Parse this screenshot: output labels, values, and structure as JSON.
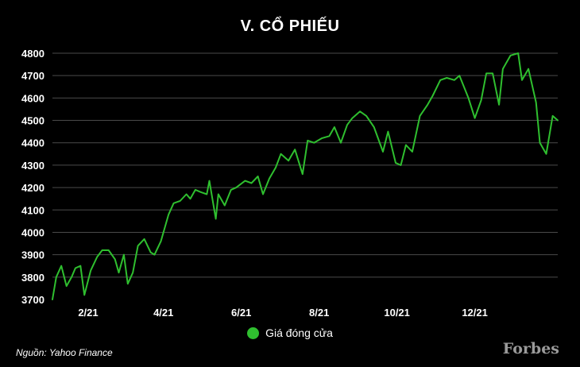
{
  "colors": {
    "background": "#000000",
    "line": "#2fbf2f",
    "grid": "#4a4a4a",
    "text": "#ffffff",
    "logo": "#9a9a9a"
  },
  "legend": {
    "label": "Giá đóng cửa"
  },
  "source": "Nguồn: Yahoo Finance",
  "brand": "Forbes",
  "chart_data": {
    "type": "line",
    "title": "V. CỔ PHIẾU",
    "xlabel": "",
    "ylabel": "",
    "ylim": [
      3700,
      4800
    ],
    "xlim": [
      "2021-01-04",
      "2022-02-04"
    ],
    "yticks": [
      3700,
      3800,
      3900,
      4000,
      4100,
      4200,
      4300,
      4400,
      4500,
      4600,
      4700,
      4800
    ],
    "xticks": [
      {
        "date": "2021-02-01",
        "label": "2/21"
      },
      {
        "date": "2021-04-01",
        "label": "4/21"
      },
      {
        "date": "2021-06-01",
        "label": "6/21"
      },
      {
        "date": "2021-08-01",
        "label": "8/21"
      },
      {
        "date": "2021-10-01",
        "label": "10/21"
      },
      {
        "date": "2021-12-01",
        "label": "12/21"
      }
    ],
    "grid": "horizontal",
    "legend_position": "bottom-center",
    "series": [
      {
        "name": "Giá đóng cửa",
        "points": [
          [
            "2021-01-04",
            3700
          ],
          [
            "2021-01-07",
            3800
          ],
          [
            "2021-01-11",
            3850
          ],
          [
            "2021-01-15",
            3760
          ],
          [
            "2021-01-19",
            3800
          ],
          [
            "2021-01-22",
            3840
          ],
          [
            "2021-01-26",
            3850
          ],
          [
            "2021-01-29",
            3720
          ],
          [
            "2021-02-03",
            3830
          ],
          [
            "2021-02-08",
            3890
          ],
          [
            "2021-02-12",
            3920
          ],
          [
            "2021-02-17",
            3920
          ],
          [
            "2021-02-22",
            3880
          ],
          [
            "2021-02-25",
            3820
          ],
          [
            "2021-03-01",
            3900
          ],
          [
            "2021-03-04",
            3770
          ],
          [
            "2021-03-08",
            3820
          ],
          [
            "2021-03-12",
            3940
          ],
          [
            "2021-03-17",
            3970
          ],
          [
            "2021-03-22",
            3910
          ],
          [
            "2021-03-25",
            3900
          ],
          [
            "2021-03-30",
            3960
          ],
          [
            "2021-04-05",
            4080
          ],
          [
            "2021-04-09",
            4130
          ],
          [
            "2021-04-14",
            4140
          ],
          [
            "2021-04-19",
            4170
          ],
          [
            "2021-04-22",
            4150
          ],
          [
            "2021-04-26",
            4190
          ],
          [
            "2021-04-30",
            4180
          ],
          [
            "2021-05-05",
            4170
          ],
          [
            "2021-05-07",
            4230
          ],
          [
            "2021-05-12",
            4060
          ],
          [
            "2021-05-14",
            4170
          ],
          [
            "2021-05-19",
            4120
          ],
          [
            "2021-05-24",
            4190
          ],
          [
            "2021-05-28",
            4200
          ],
          [
            "2021-06-04",
            4230
          ],
          [
            "2021-06-09",
            4220
          ],
          [
            "2021-06-14",
            4250
          ],
          [
            "2021-06-18",
            4170
          ],
          [
            "2021-06-23",
            4240
          ],
          [
            "2021-06-28",
            4290
          ],
          [
            "2021-07-02",
            4350
          ],
          [
            "2021-07-08",
            4320
          ],
          [
            "2021-07-13",
            4370
          ],
          [
            "2021-07-19",
            4260
          ],
          [
            "2021-07-23",
            4410
          ],
          [
            "2021-07-28",
            4400
          ],
          [
            "2021-08-03",
            4420
          ],
          [
            "2021-08-09",
            4430
          ],
          [
            "2021-08-13",
            4470
          ],
          [
            "2021-08-18",
            4400
          ],
          [
            "2021-08-23",
            4480
          ],
          [
            "2021-08-27",
            4510
          ],
          [
            "2021-09-02",
            4540
          ],
          [
            "2021-09-07",
            4520
          ],
          [
            "2021-09-13",
            4470
          ],
          [
            "2021-09-20",
            4360
          ],
          [
            "2021-09-24",
            4450
          ],
          [
            "2021-09-30",
            4310
          ],
          [
            "2021-10-04",
            4300
          ],
          [
            "2021-10-08",
            4390
          ],
          [
            "2021-10-13",
            4360
          ],
          [
            "2021-10-19",
            4520
          ],
          [
            "2021-10-25",
            4570
          ],
          [
            "2021-10-29",
            4610
          ],
          [
            "2021-11-04",
            4680
          ],
          [
            "2021-11-09",
            4690
          ],
          [
            "2021-11-15",
            4680
          ],
          [
            "2021-11-19",
            4700
          ],
          [
            "2021-11-26",
            4600
          ],
          [
            "2021-12-01",
            4510
          ],
          [
            "2021-12-06",
            4590
          ],
          [
            "2021-12-10",
            4710
          ],
          [
            "2021-12-15",
            4710
          ],
          [
            "2021-12-20",
            4570
          ],
          [
            "2021-12-23",
            4730
          ],
          [
            "2021-12-29",
            4790
          ],
          [
            "2022-01-04",
            4800
          ],
          [
            "2022-01-07",
            4680
          ],
          [
            "2022-01-12",
            4730
          ],
          [
            "2022-01-18",
            4580
          ],
          [
            "2022-01-21",
            4400
          ],
          [
            "2022-01-26",
            4350
          ],
          [
            "2022-01-31",
            4520
          ],
          [
            "2022-02-04",
            4500
          ]
        ]
      }
    ]
  }
}
